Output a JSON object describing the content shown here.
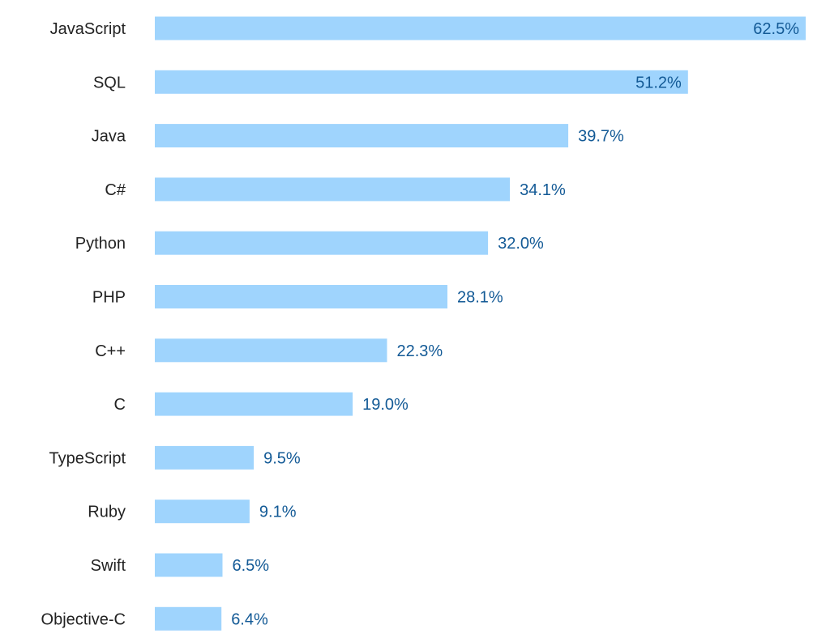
{
  "chart_data": {
    "type": "bar",
    "orientation": "horizontal",
    "categories": [
      "JavaScript",
      "SQL",
      "Java",
      "C#",
      "Python",
      "PHP",
      "C++",
      "C",
      "TypeScript",
      "Ruby",
      "Swift",
      "Objective-C"
    ],
    "values": [
      62.5,
      51.2,
      39.7,
      34.1,
      32.0,
      28.1,
      22.3,
      19.0,
      9.5,
      9.1,
      6.5,
      6.4
    ],
    "value_labels": [
      "62.5%",
      "51.2%",
      "39.7%",
      "34.1%",
      "32.0%",
      "28.1%",
      "22.3%",
      "19.0%",
      "9.5%",
      "9.1%",
      "6.5%",
      "6.4%"
    ],
    "title": "",
    "xlabel": "",
    "ylabel": "",
    "xlim": [
      0,
      62.5
    ],
    "grid": false,
    "legend": "none"
  },
  "colors": {
    "bar": "#9fd4fd",
    "value_label": "#135a96",
    "category_label": "#222222"
  }
}
